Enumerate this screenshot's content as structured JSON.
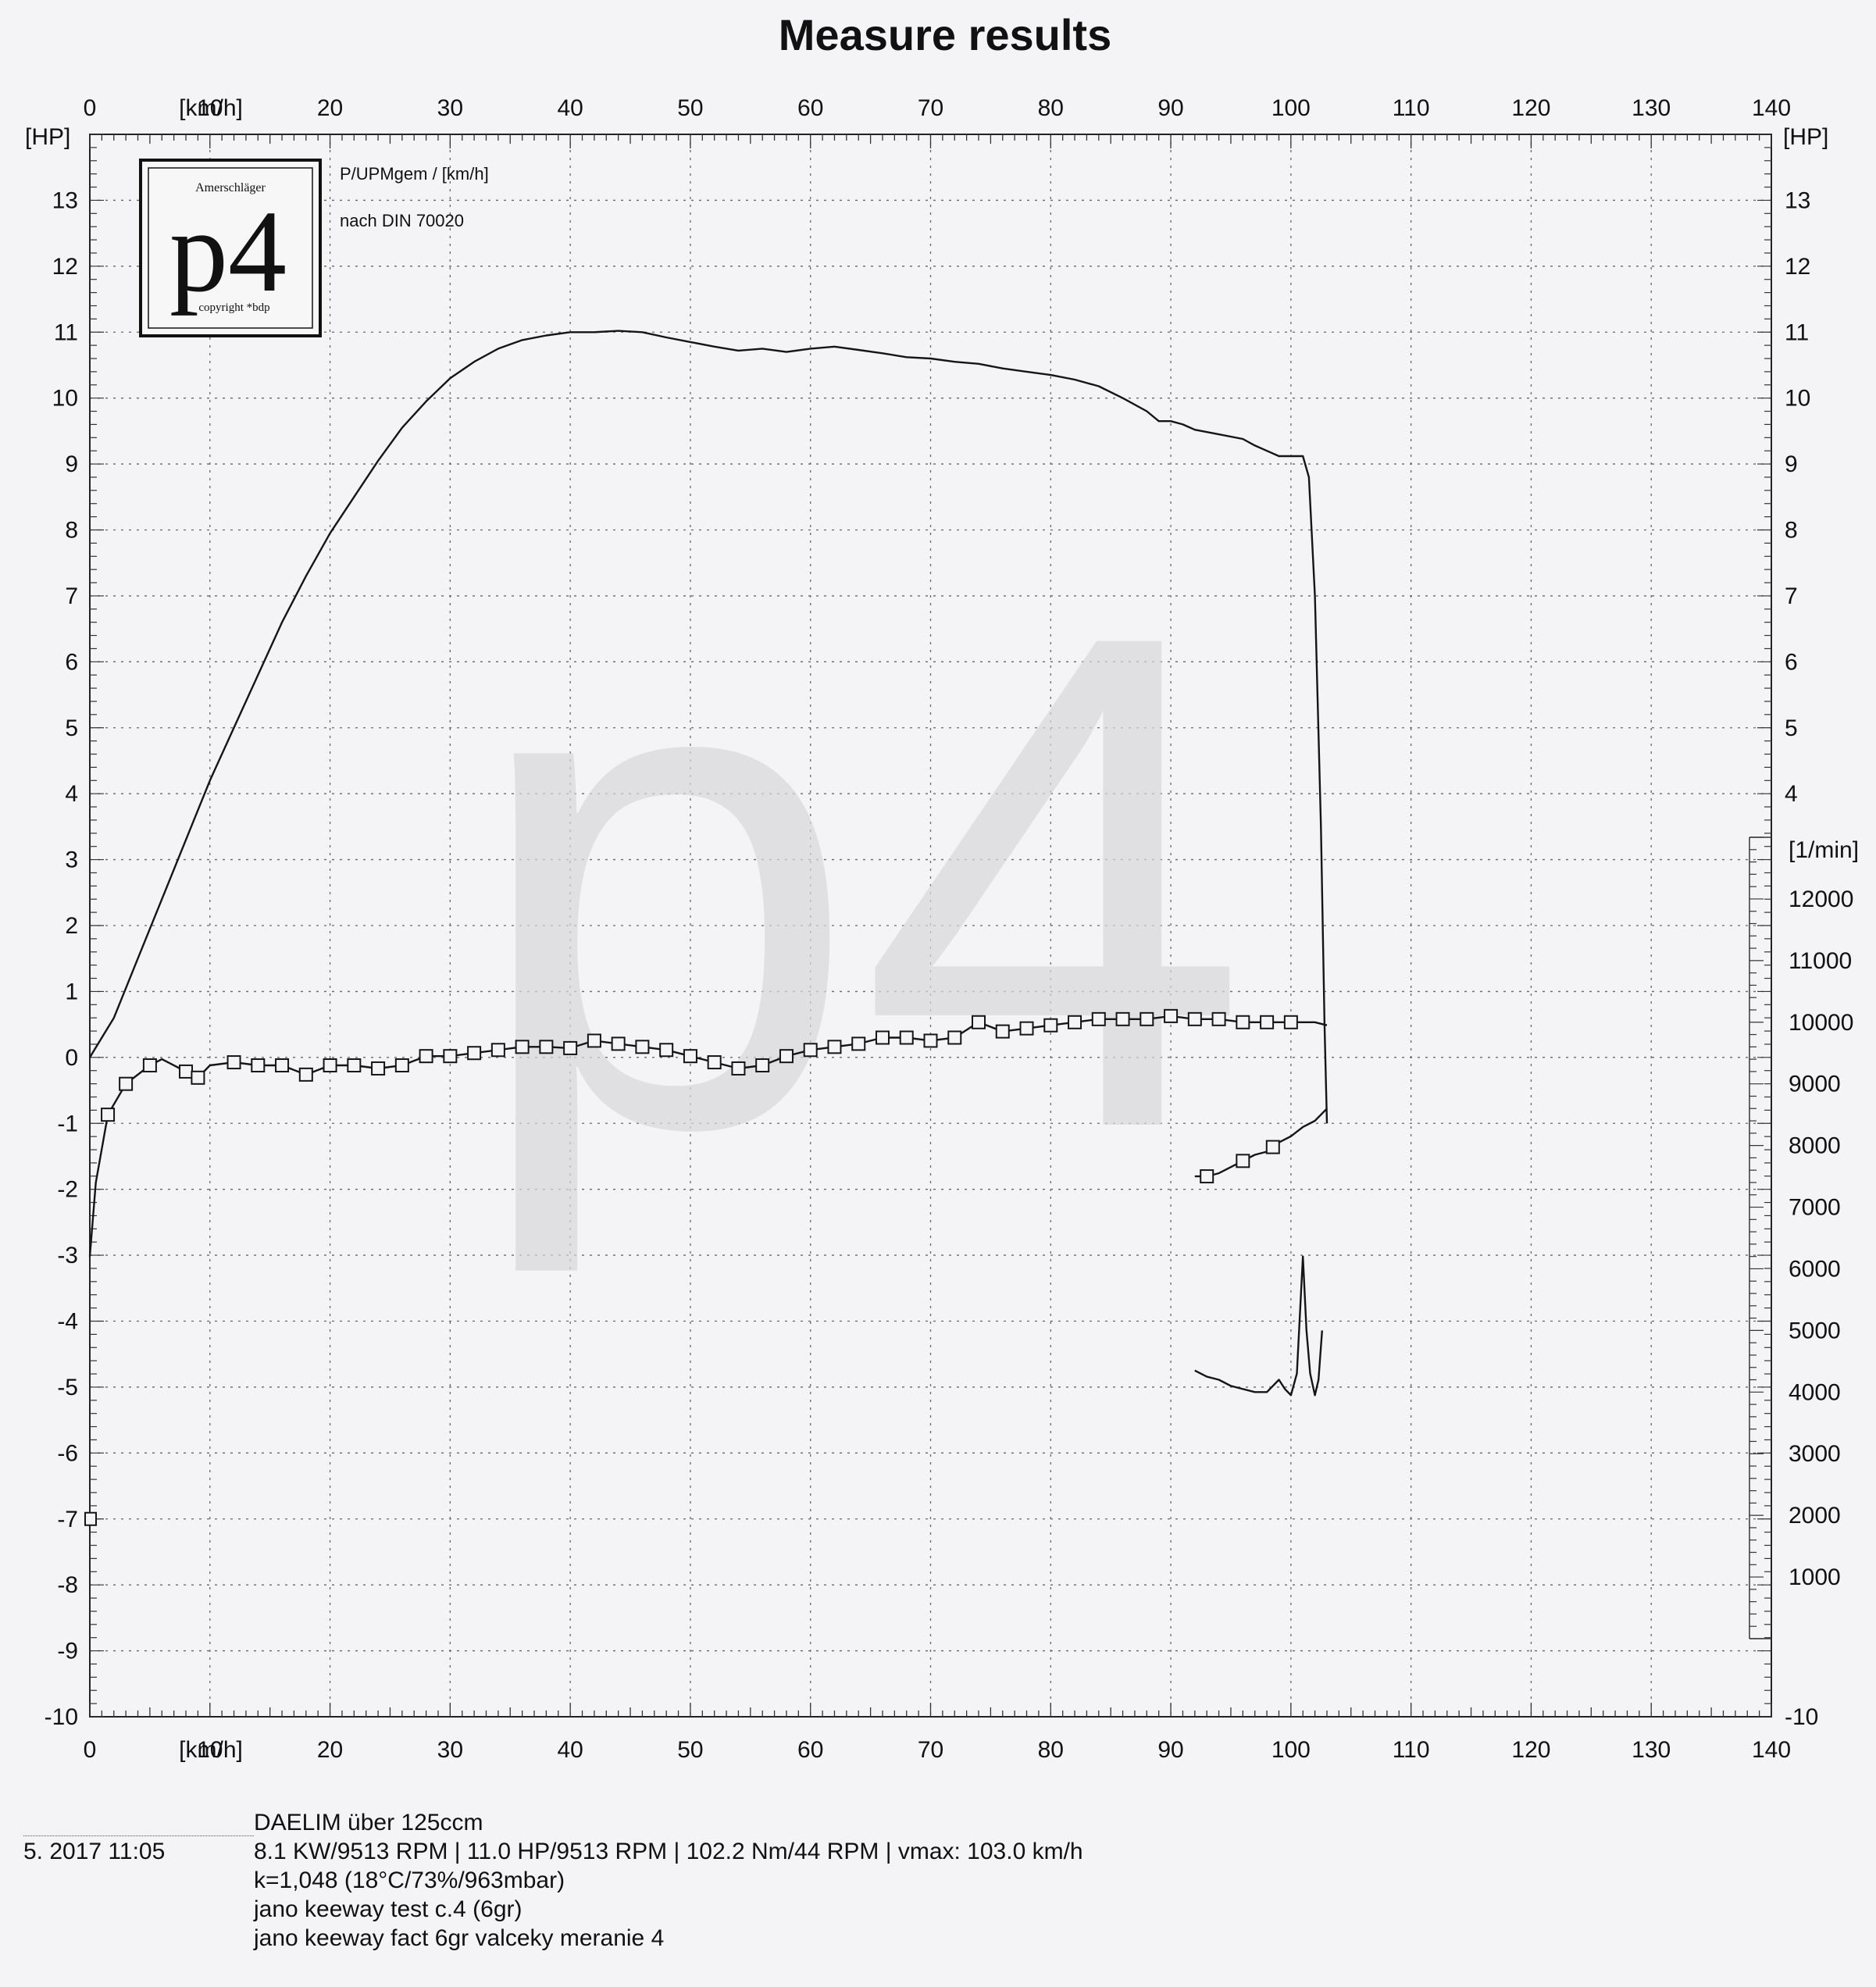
{
  "chart_data": {
    "type": "line",
    "title": "Measure results",
    "x_unit_label": "[km/h]",
    "left_unit_label": "[HP]",
    "right_unit_label": "[HP]",
    "rpm_unit_label": "[1/min]",
    "xlim": [
      0,
      140
    ],
    "ylim": [
      -10,
      14
    ],
    "x_ticks": [
      0,
      10,
      20,
      30,
      40,
      50,
      60,
      70,
      80,
      90,
      100,
      110,
      120,
      130,
      140
    ],
    "y_ticks_left": [
      13,
      12,
      11,
      10,
      9,
      8,
      7,
      6,
      5,
      4,
      3,
      2,
      1,
      0,
      -1,
      -2,
      -3,
      -4,
      -5,
      -6,
      -7,
      -8,
      -9,
      -10
    ],
    "y_ticks_right": [
      13,
      12,
      11,
      10,
      9,
      8,
      7,
      6,
      5,
      4
    ],
    "y_right_bottom_tick": -10,
    "rpm_ticks": [
      12000,
      11000,
      10000,
      9000,
      8000,
      7000,
      6000,
      5000,
      4000,
      3000,
      2000,
      1000
    ],
    "rpm_range": [
      0,
      13000
    ],
    "grid": true,
    "logo": {
      "big": "p4",
      "top": "Amerschläger",
      "bottom": "copyright *bdp"
    },
    "legend_line1": "P/UPMgem / [km/h]",
    "legend_line2": "nach DIN 70020",
    "series": [
      {
        "axis": "hp",
        "marker": "none",
        "points": [
          [
            0,
            0
          ],
          [
            2,
            0.6
          ],
          [
            4,
            1.5
          ],
          [
            6,
            2.4
          ],
          [
            8,
            3.3
          ],
          [
            10,
            4.2
          ],
          [
            12,
            5.0
          ],
          [
            14,
            5.8
          ],
          [
            16,
            6.6
          ],
          [
            18,
            7.3
          ],
          [
            20,
            7.95
          ],
          [
            22,
            8.5
          ],
          [
            24,
            9.05
          ],
          [
            26,
            9.55
          ],
          [
            28,
            9.95
          ],
          [
            30,
            10.3
          ],
          [
            32,
            10.55
          ],
          [
            34,
            10.75
          ],
          [
            36,
            10.88
          ],
          [
            38,
            10.95
          ],
          [
            40,
            11.0
          ],
          [
            42,
            11.0
          ],
          [
            44,
            11.02
          ],
          [
            46,
            11.0
          ],
          [
            48,
            10.92
          ],
          [
            50,
            10.85
          ],
          [
            52,
            10.78
          ],
          [
            54,
            10.72
          ],
          [
            56,
            10.75
          ],
          [
            58,
            10.7
          ],
          [
            60,
            10.75
          ],
          [
            62,
            10.78
          ],
          [
            64,
            10.73
          ],
          [
            66,
            10.68
          ],
          [
            68,
            10.62
          ],
          [
            70,
            10.6
          ],
          [
            72,
            10.55
          ],
          [
            74,
            10.52
          ],
          [
            76,
            10.45
          ],
          [
            78,
            10.4
          ],
          [
            80,
            10.35
          ],
          [
            82,
            10.28
          ],
          [
            84,
            10.18
          ],
          [
            86,
            10.0
          ],
          [
            88,
            9.8
          ],
          [
            89,
            9.65
          ],
          [
            90,
            9.65
          ],
          [
            91,
            9.6
          ],
          [
            92,
            9.52
          ],
          [
            94,
            9.45
          ],
          [
            96,
            9.38
          ],
          [
            97,
            9.28
          ],
          [
            98,
            9.2
          ],
          [
            99,
            9.12
          ],
          [
            100,
            9.12
          ],
          [
            101,
            9.12
          ],
          [
            101.5,
            8.8
          ],
          [
            102,
            7.0
          ],
          [
            102.5,
            3.5
          ],
          [
            102.8,
            0.5
          ],
          [
            103,
            -1.0
          ]
        ]
      },
      {
        "axis": "rpm",
        "marker": "square",
        "points": [
          [
            0,
            6200
          ],
          [
            0.5,
            7400
          ],
          [
            1.5,
            8500
          ],
          [
            3,
            9000
          ],
          [
            5,
            9300
          ],
          [
            6,
            9400
          ],
          [
            8,
            9200
          ],
          [
            9,
            9100
          ],
          [
            10,
            9300
          ],
          [
            12,
            9350
          ],
          [
            14,
            9300
          ],
          [
            16,
            9300
          ],
          [
            18,
            9150
          ],
          [
            20,
            9300
          ],
          [
            22,
            9300
          ],
          [
            24,
            9250
          ],
          [
            26,
            9300
          ],
          [
            28,
            9450
          ],
          [
            30,
            9450
          ],
          [
            32,
            9500
          ],
          [
            34,
            9550
          ],
          [
            36,
            9600
          ],
          [
            38,
            9600
          ],
          [
            40,
            9580
          ],
          [
            42,
            9700
          ],
          [
            44,
            9650
          ],
          [
            46,
            9600
          ],
          [
            48,
            9550
          ],
          [
            50,
            9450
          ],
          [
            52,
            9350
          ],
          [
            54,
            9250
          ],
          [
            56,
            9300
          ],
          [
            58,
            9450
          ],
          [
            60,
            9550
          ],
          [
            62,
            9600
          ],
          [
            64,
            9650
          ],
          [
            66,
            9750
          ],
          [
            68,
            9750
          ],
          [
            70,
            9700
          ],
          [
            72,
            9750
          ],
          [
            74,
            10000
          ],
          [
            76,
            9850
          ],
          [
            78,
            9900
          ],
          [
            80,
            9950
          ],
          [
            82,
            10000
          ],
          [
            84,
            10050
          ],
          [
            86,
            10050
          ],
          [
            88,
            10050
          ],
          [
            90,
            10100
          ],
          [
            92,
            10050
          ],
          [
            94,
            10050
          ],
          [
            96,
            10000
          ],
          [
            98,
            10000
          ],
          [
            100,
            10000
          ],
          [
            102,
            10000
          ],
          [
            103,
            9950
          ]
        ],
        "marker_x": [
          1.5,
          3,
          5,
          8,
          9,
          12,
          14,
          16,
          18,
          20,
          22,
          24,
          26,
          28,
          30,
          32,
          34,
          36,
          38,
          40,
          42,
          44,
          46,
          48,
          50,
          52,
          54,
          56,
          58,
          60,
          62,
          64,
          66,
          68,
          70,
          72,
          74,
          76,
          78,
          80,
          82,
          84,
          86,
          88,
          90,
          92,
          94,
          96,
          98,
          100
        ]
      },
      {
        "axis": "rpm",
        "marker": "square",
        "points": [
          [
            92,
            7500
          ],
          [
            93,
            7500
          ],
          [
            94,
            7550
          ],
          [
            95,
            7650
          ],
          [
            96,
            7750
          ],
          [
            97,
            7850
          ],
          [
            98,
            7900
          ],
          [
            99,
            8050
          ],
          [
            100,
            8150
          ],
          [
            101,
            8300
          ],
          [
            102,
            8400
          ],
          [
            103,
            8600
          ]
        ],
        "marker_x": [
          93,
          96,
          98.5
        ]
      },
      {
        "axis": "rpm",
        "marker": "none",
        "points": [
          [
            92,
            4350
          ],
          [
            93,
            4250
          ],
          [
            94,
            4200
          ],
          [
            95,
            4100
          ],
          [
            96,
            4050
          ],
          [
            97,
            4000
          ],
          [
            98,
            4000
          ],
          [
            99,
            4200
          ],
          [
            99.5,
            4050
          ],
          [
            100,
            3950
          ],
          [
            100.5,
            4300
          ],
          [
            101,
            6200
          ],
          [
            101.3,
            5000
          ],
          [
            101.6,
            4300
          ],
          [
            102,
            3950
          ],
          [
            102.3,
            4200
          ],
          [
            102.6,
            5000
          ]
        ]
      }
    ]
  },
  "footer": {
    "vehicle": "DAELIM über 125ccm",
    "date": "5. 2017  11:05",
    "results": "8.1 KW/9513 RPM  |  11.0 HP/9513 RPM  |  102.2 Nm/44 RPM |  vmax: 103.0 km/h",
    "correction": "k=1,048 (18°C/73%/963mbar)",
    "note1": "jano keeway test c.4 (6gr)",
    "note2": "jano keeway fact 6gr valceky meranie 4"
  }
}
